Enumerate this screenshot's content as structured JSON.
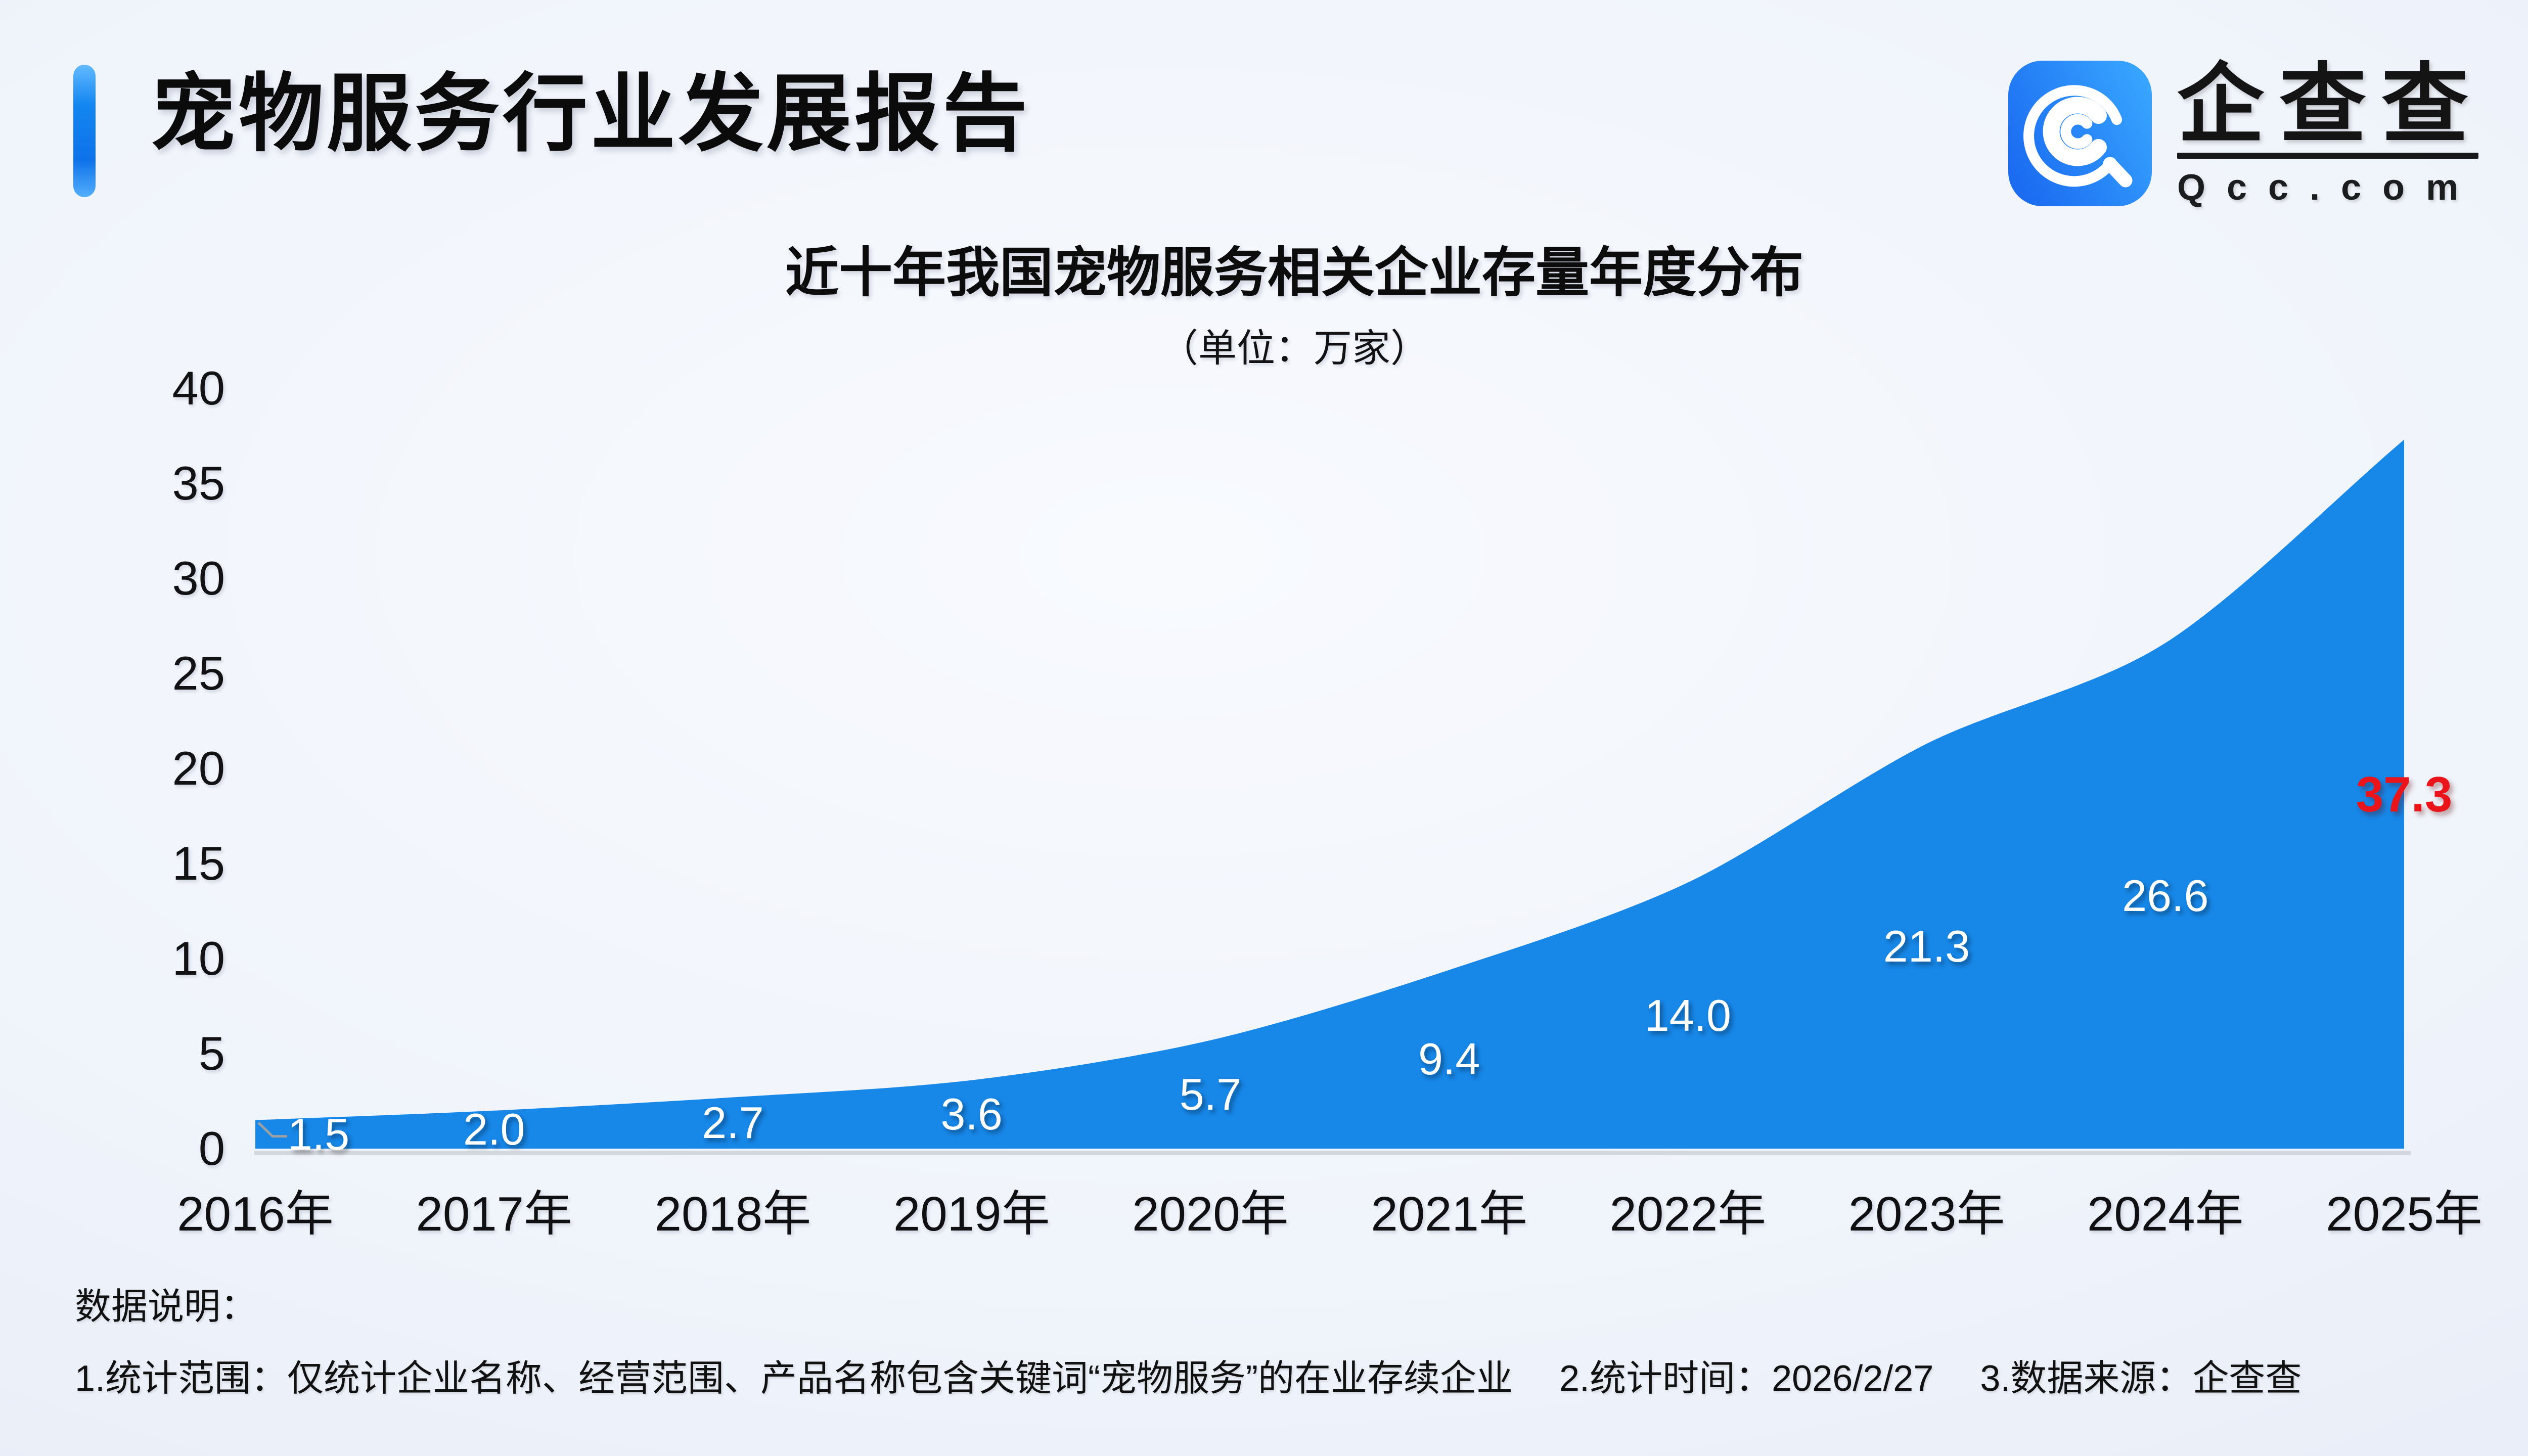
{
  "header": {
    "title": "宠物服务行业发展报告"
  },
  "logo": {
    "name": "企查查",
    "domain": "Qcc.com",
    "icon": "qcc-spiral-magnifier-icon",
    "icon_bg_from": "#1b6cf1",
    "icon_bg_to": "#38a6ff"
  },
  "chart_data": {
    "type": "area",
    "title": "近十年我国宠物服务相关企业存量年度分布",
    "subtitle": "（单位：万家）",
    "categories": [
      "2016年",
      "2017年",
      "2018年",
      "2019年",
      "2020年",
      "2021年",
      "2022年",
      "2023年",
      "2024年",
      "2025年"
    ],
    "values": [
      1.5,
      2.0,
      2.7,
      3.6,
      5.7,
      9.4,
      14.0,
      21.3,
      26.6,
      37.3
    ],
    "labels": [
      "1.5",
      "2.0",
      "2.7",
      "3.6",
      "5.7",
      "9.4",
      "14.0",
      "21.3",
      "26.6",
      "37.3"
    ],
    "xlabel": "",
    "ylabel": "",
    "ylim": [
      0,
      40
    ],
    "yticks": [
      0,
      5,
      10,
      15,
      20,
      25,
      30,
      35,
      40
    ],
    "grid": false,
    "legend_position": "none",
    "smooth": true,
    "area_color": "#1787e8",
    "label_color": "#ffffff",
    "last_label_color": "#e9151b",
    "axis_line_color": "#d2d6dd",
    "leader_line_color": "#9aa0a6"
  },
  "notes": {
    "heading": "数据说明：",
    "items": [
      "1.统计范围：仅统计企业名称、经营范围、产品名称包含关键词“宠物服务”的在业存续企业",
      "2.统计时间：2026/2/27",
      "3.数据来源：企查查"
    ]
  }
}
